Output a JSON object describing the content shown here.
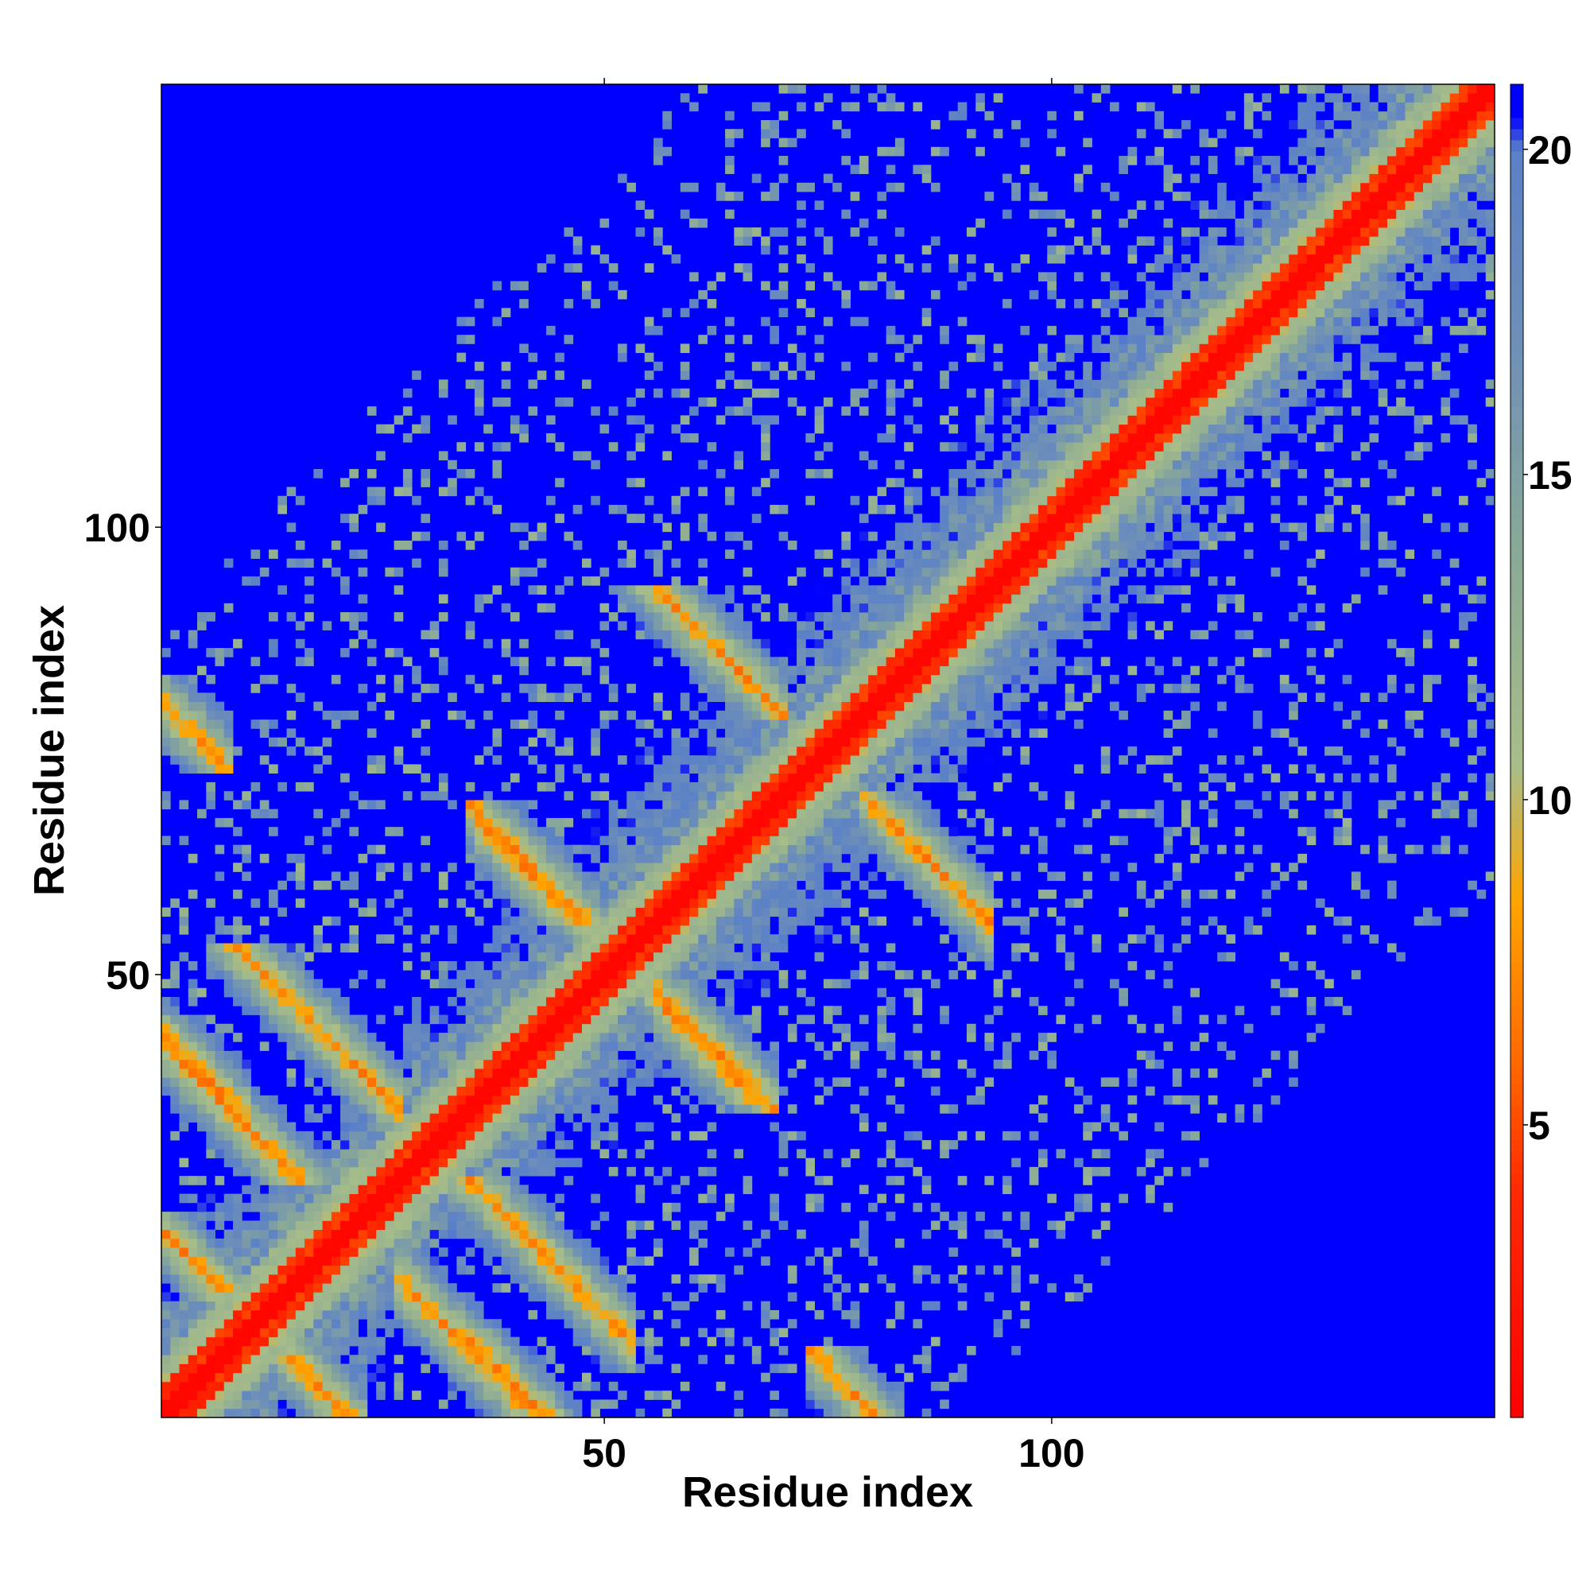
{
  "chart_data": {
    "type": "heatmap",
    "title": "",
    "xlabel": "Residue index",
    "ylabel": "Residue index",
    "n_residues": 149,
    "xlim": [
      1,
      149
    ],
    "ylim": [
      1,
      149
    ],
    "x_ticks": [
      {
        "value": 50,
        "label": "50"
      },
      {
        "value": 100,
        "label": "100"
      }
    ],
    "y_ticks": [
      {
        "value": 50,
        "label": "50"
      },
      {
        "value": 100,
        "label": "100"
      }
    ],
    "colorbar": {
      "range": [
        0.5,
        21
      ],
      "ticks": [
        {
          "value": 5,
          "label": "5"
        },
        {
          "value": 10,
          "label": "10"
        },
        {
          "value": 15,
          "label": "15"
        },
        {
          "value": 20,
          "label": "20"
        }
      ],
      "stops": [
        {
          "value": 0.5,
          "color": "#ff0000"
        },
        {
          "value": 4,
          "color": "#ff2a00"
        },
        {
          "value": 6,
          "color": "#ff6a00"
        },
        {
          "value": 8.5,
          "color": "#ffa500"
        },
        {
          "value": 10.5,
          "color": "#a8bd88"
        },
        {
          "value": 14,
          "color": "#88a898"
        },
        {
          "value": 17,
          "color": "#6e8fb8"
        },
        {
          "value": 20,
          "color": "#5a80c8"
        },
        {
          "value": 20.5,
          "color": "#0000ff"
        },
        {
          "value": 21,
          "color": "#0000ff"
        }
      ]
    },
    "cutoff_color": "#0000ff",
    "description_of_values": "Symmetric residue-residue distance map; red/orange values along the main diagonal and along antiparallel strand pairings, blue beyond cutoff.",
    "diagonal_features": [
      {
        "type": "main_diagonal",
        "value": 2
      },
      {
        "type": "antiparallel",
        "i_range": [
          2,
          20
        ],
        "j_range": [
          2,
          20
        ],
        "center_sum": 22,
        "value": 6
      },
      {
        "type": "antiparallel",
        "i_range": [
          30,
          44
        ],
        "j_range": [
          1,
          15
        ],
        "center_sum": 43,
        "value": 6
      },
      {
        "type": "antiparallel",
        "i_range": [
          13,
          24
        ],
        "j_range": [
          38,
          50
        ],
        "center_sum": 62,
        "value": 6
      },
      {
        "type": "antiparallel",
        "i_range": [
          35,
          50
        ],
        "j_range": [
          9,
          24
        ],
        "center_sum": 62,
        "value": 6
      },
      {
        "type": "antiparallel",
        "i_range": [
          39,
          49
        ],
        "j_range": [
          59,
          66
        ],
        "center_sum": 103,
        "value": 6
      },
      {
        "type": "antiparallel",
        "i_range": [
          54,
          66
        ],
        "j_range": [
          38,
          52
        ],
        "center_sum": 104,
        "value": 6
      },
      {
        "type": "antiparallel",
        "i_range": [
          56,
          67
        ],
        "j_range": [
          82,
          90
        ],
        "center_sum": 149,
        "value": 6
      },
      {
        "type": "antiparallel",
        "i_range": [
          82,
          90
        ],
        "j_range": [
          55,
          67
        ],
        "center_sum": 149,
        "value": 6
      },
      {
        "type": "antiparallel",
        "i_range": [
          76,
          80
        ],
        "j_range": [
          1,
          5
        ],
        "center_sum": 81,
        "value": 6
      },
      {
        "type": "antiparallel",
        "i_range": [
          1,
          7
        ],
        "j_range": [
          36,
          42
        ],
        "center_sum": 44,
        "value": 6
      }
    ]
  }
}
